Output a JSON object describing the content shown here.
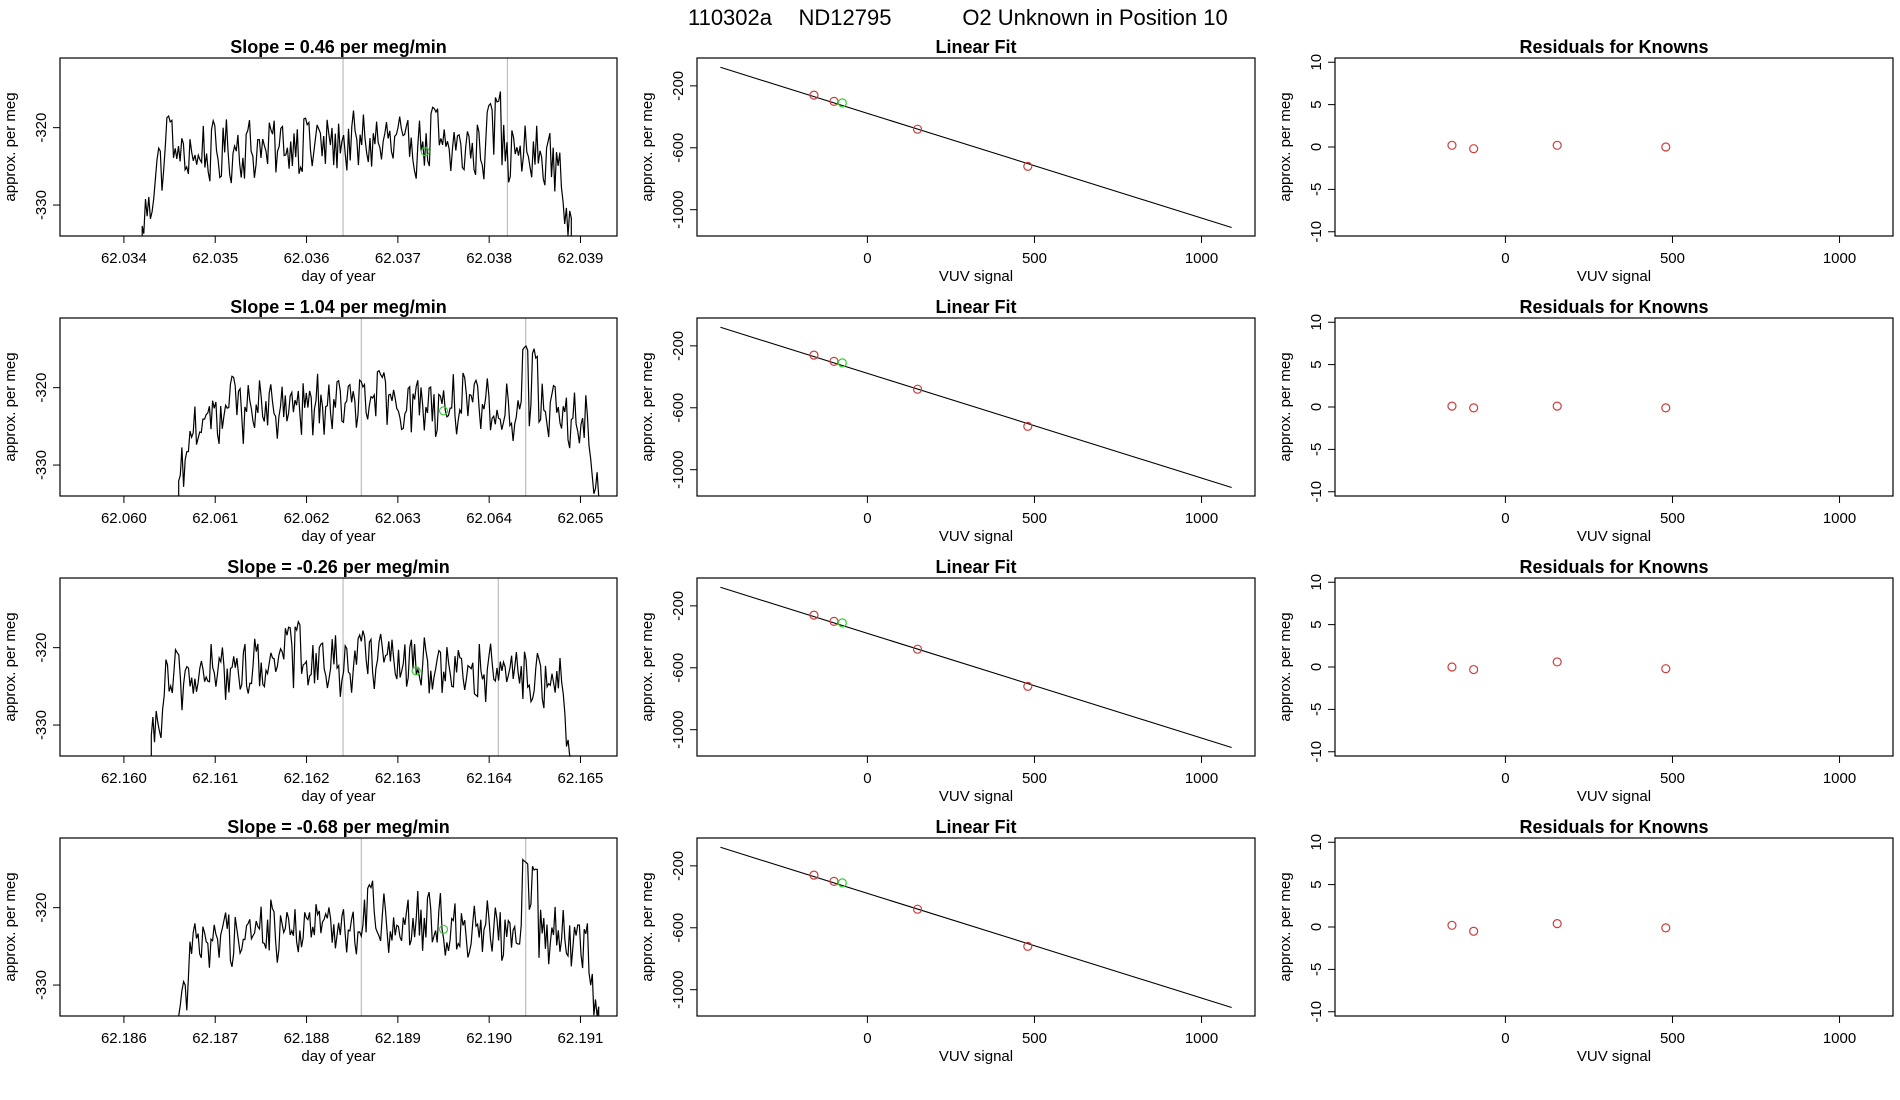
{
  "page": {
    "run_id": "110302a",
    "tank_id": "ND12795",
    "title_rest": "O2 Unknown in Position  10"
  },
  "colors": {
    "trace": "#000000",
    "guide_line": "#bebebe",
    "known_points": "#cd3c3c",
    "unknown_point": "#2fd12f",
    "frame": "#000000"
  },
  "chart_data": [
    {
      "type": "line",
      "panel": "time-series",
      "row": 1,
      "title": "Slope =  0.46  per meg/min",
      "xlabel": "day of year",
      "ylabel": "approx. per meg",
      "xlim": [
        62.0333,
        62.0394
      ],
      "ylim": [
        -334,
        -311
      ],
      "xticks": [
        "62.034",
        "62.035",
        "62.036",
        "62.037",
        "62.038",
        "62.039"
      ],
      "yticks": [
        -330,
        -320
      ],
      "trace_start": 62.0342,
      "trace_end": 62.0389,
      "vertical_lines": [
        62.0364,
        62.0382
      ],
      "unknown_marker": {
        "x": 62.0373,
        "y": -323.1
      },
      "spikes": [
        [
          62.0345,
          -319
        ],
        [
          62.0381,
          -316
        ],
        [
          62.038,
          -317.5
        ],
        [
          62.0374,
          -318
        ],
        [
          62.036,
          -319.5
        ]
      ]
    },
    {
      "type": "scatter",
      "panel": "linear-fit",
      "row": 1,
      "title": "Linear Fit",
      "xlabel": "VUV signal",
      "ylabel": "approx. per meg",
      "xlim": [
        -510,
        1160
      ],
      "ylim": [
        -1170,
        -20
      ],
      "xticks": [
        0,
        500,
        1000
      ],
      "yticks": [
        -200,
        -600,
        -1000
      ],
      "fit_line": {
        "x0": -440,
        "y0": -80,
        "x1": 1090,
        "y1": -1115
      },
      "knowns": [
        {
          "x": -160,
          "y": -260
        },
        {
          "x": -100,
          "y": -300
        },
        {
          "x": 150,
          "y": -480
        },
        {
          "x": 480,
          "y": -720
        }
      ],
      "unknown": {
        "x": -75,
        "y": -310
      }
    },
    {
      "type": "scatter",
      "panel": "residuals",
      "row": 1,
      "title": "Residuals for Knowns",
      "xlabel": "VUV signal",
      "ylabel": "approx. per meg",
      "xlim": [
        -510,
        1160
      ],
      "ylim": [
        -10.5,
        10.5
      ],
      "xticks": [
        0,
        500,
        1000
      ],
      "yticks": [
        10,
        5,
        0,
        -5,
        -10
      ],
      "points": [
        {
          "x": -160,
          "y": 0.2
        },
        {
          "x": -95,
          "y": -0.2
        },
        {
          "x": 155,
          "y": 0.2
        },
        {
          "x": 480,
          "y": 0.0
        }
      ]
    },
    {
      "type": "line",
      "panel": "time-series",
      "row": 2,
      "title": "Slope =  1.04  per meg/min",
      "xlabel": "day of year",
      "ylabel": "approx. per meg",
      "xlim": [
        62.0593,
        62.0654
      ],
      "ylim": [
        -334,
        -311
      ],
      "xticks": [
        "62.060",
        "62.061",
        "62.062",
        "62.063",
        "62.064",
        "62.065"
      ],
      "yticks": [
        -330,
        -320
      ],
      "trace_start": 62.0606,
      "trace_end": 62.0652,
      "vertical_lines": [
        62.0626,
        62.0644
      ],
      "unknown_marker": {
        "x": 62.0635,
        "y": -323
      },
      "spikes": [
        [
          62.0644,
          -315
        ],
        [
          62.0645,
          -315.5
        ],
        [
          62.0612,
          -319
        ],
        [
          62.0628,
          -318.5
        ]
      ]
    },
    {
      "type": "scatter",
      "panel": "linear-fit",
      "row": 2,
      "title": "Linear Fit",
      "xlabel": "VUV signal",
      "ylabel": "approx. per meg",
      "xlim": [
        -510,
        1160
      ],
      "ylim": [
        -1170,
        -20
      ],
      "xticks": [
        0,
        500,
        1000
      ],
      "yticks": [
        -200,
        -600,
        -1000
      ],
      "fit_line": {
        "x0": -440,
        "y0": -80,
        "x1": 1090,
        "y1": -1115
      },
      "knowns": [
        {
          "x": -160,
          "y": -260
        },
        {
          "x": -100,
          "y": -300
        },
        {
          "x": 150,
          "y": -480
        },
        {
          "x": 480,
          "y": -720
        }
      ],
      "unknown": {
        "x": -75,
        "y": -310
      }
    },
    {
      "type": "scatter",
      "panel": "residuals",
      "row": 2,
      "title": "Residuals for Knowns",
      "xlabel": "VUV signal",
      "ylabel": "approx. per meg",
      "xlim": [
        -510,
        1160
      ],
      "ylim": [
        -10.5,
        10.5
      ],
      "xticks": [
        0,
        500,
        1000
      ],
      "yticks": [
        10,
        5,
        0,
        -5,
        -10
      ],
      "points": [
        {
          "x": -160,
          "y": 0.1
        },
        {
          "x": -95,
          "y": -0.1
        },
        {
          "x": 155,
          "y": 0.1
        },
        {
          "x": 480,
          "y": -0.1
        }
      ]
    },
    {
      "type": "line",
      "panel": "time-series",
      "row": 3,
      "title": "Slope =  -0.26  per meg/min",
      "xlabel": "day of year",
      "ylabel": "approx. per meg",
      "xlim": [
        62.1593,
        62.1654
      ],
      "ylim": [
        -334,
        -311
      ],
      "xticks": [
        "62.160",
        "62.161",
        "62.162",
        "62.163",
        "62.164",
        "62.165"
      ],
      "yticks": [
        -330,
        -320
      ],
      "trace_start": 62.1603,
      "trace_end": 62.1649,
      "vertical_lines": [
        62.1624,
        62.1641
      ],
      "unknown_marker": {
        "x": 62.1632,
        "y": -323
      },
      "spikes": [
        [
          62.1619,
          -317
        ],
        [
          62.1618,
          -318
        ],
        [
          62.1626,
          -318.5
        ]
      ]
    },
    {
      "type": "scatter",
      "panel": "linear-fit",
      "row": 3,
      "title": "Linear Fit",
      "xlabel": "VUV signal",
      "ylabel": "approx. per meg",
      "xlim": [
        -510,
        1160
      ],
      "ylim": [
        -1170,
        -20
      ],
      "xticks": [
        0,
        500,
        1000
      ],
      "yticks": [
        -200,
        -600,
        -1000
      ],
      "fit_line": {
        "x0": -440,
        "y0": -80,
        "x1": 1090,
        "y1": -1115
      },
      "knowns": [
        {
          "x": -160,
          "y": -260
        },
        {
          "x": -100,
          "y": -300
        },
        {
          "x": 150,
          "y": -480
        },
        {
          "x": 480,
          "y": -720
        }
      ],
      "unknown": {
        "x": -75,
        "y": -310
      }
    },
    {
      "type": "scatter",
      "panel": "residuals",
      "row": 3,
      "title": "Residuals for Knowns",
      "xlabel": "VUV signal",
      "ylabel": "approx. per meg",
      "xlim": [
        -510,
        1160
      ],
      "ylim": [
        -10.5,
        10.5
      ],
      "xticks": [
        0,
        500,
        1000
      ],
      "yticks": [
        10,
        5,
        0,
        -5,
        -10
      ],
      "points": [
        {
          "x": -160,
          "y": 0.0
        },
        {
          "x": -95,
          "y": -0.3
        },
        {
          "x": 155,
          "y": 0.6
        },
        {
          "x": 480,
          "y": -0.2
        }
      ]
    },
    {
      "type": "line",
      "panel": "time-series",
      "row": 4,
      "title": "Slope =  -0.68  per meg/min",
      "xlabel": "day of year",
      "ylabel": "approx. per meg",
      "xlim": [
        62.1853,
        62.1914
      ],
      "ylim": [
        -334,
        -311
      ],
      "xticks": [
        "62.186",
        "62.187",
        "62.188",
        "62.189",
        "62.190",
        "62.191"
      ],
      "yticks": [
        -330,
        -320
      ],
      "trace_start": 62.1866,
      "trace_end": 62.1912,
      "vertical_lines": [
        62.1886,
        62.1904
      ],
      "unknown_marker": {
        "x": 62.1895,
        "y": -322.8
      },
      "spikes": [
        [
          62.1904,
          -314
        ],
        [
          62.1905,
          -315
        ],
        [
          62.1887,
          -317
        ]
      ]
    },
    {
      "type": "scatter",
      "panel": "linear-fit",
      "row": 4,
      "title": "Linear Fit",
      "xlabel": "VUV signal",
      "ylabel": "approx. per meg",
      "xlim": [
        -510,
        1160
      ],
      "ylim": [
        -1170,
        -20
      ],
      "xticks": [
        0,
        500,
        1000
      ],
      "yticks": [
        -200,
        -600,
        -1000
      ],
      "fit_line": {
        "x0": -440,
        "y0": -80,
        "x1": 1090,
        "y1": -1115
      },
      "knowns": [
        {
          "x": -160,
          "y": -260
        },
        {
          "x": -100,
          "y": -300
        },
        {
          "x": 150,
          "y": -480
        },
        {
          "x": 480,
          "y": -720
        }
      ],
      "unknown": {
        "x": -75,
        "y": -310
      }
    },
    {
      "type": "scatter",
      "panel": "residuals",
      "row": 4,
      "title": "Residuals for Knowns",
      "xlabel": "VUV signal",
      "ylabel": "approx. per meg",
      "xlim": [
        -510,
        1160
      ],
      "ylim": [
        -10.5,
        10.5
      ],
      "xticks": [
        0,
        500,
        1000
      ],
      "yticks": [
        10,
        5,
        0,
        -5,
        -10
      ],
      "points": [
        {
          "x": -160,
          "y": 0.2
        },
        {
          "x": -95,
          "y": -0.5
        },
        {
          "x": 155,
          "y": 0.4
        },
        {
          "x": 480,
          "y": -0.1
        }
      ]
    }
  ]
}
